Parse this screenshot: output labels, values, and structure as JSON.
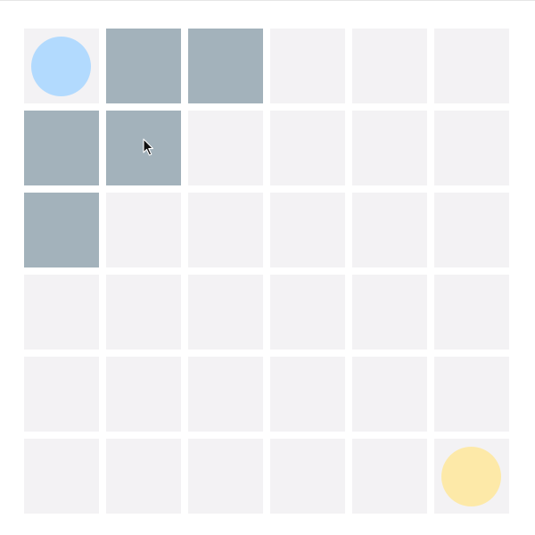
{
  "board": {
    "rows": 6,
    "cols": 6,
    "walls": [
      [
        0,
        1
      ],
      [
        0,
        2
      ],
      [
        1,
        0
      ],
      [
        1,
        1
      ],
      [
        2,
        0
      ]
    ],
    "player": {
      "row": 0,
      "col": 0,
      "color": "#b2dafe",
      "icon": "blue-circle-icon"
    },
    "goal": {
      "row": 5,
      "col": 5,
      "color": "#fde9a8",
      "icon": "yellow-circle-icon"
    },
    "colors": {
      "empty": "#f3f2f4",
      "wall": "#a3b2bb"
    }
  },
  "cursor": {
    "icon": "mouse-pointer-icon"
  }
}
